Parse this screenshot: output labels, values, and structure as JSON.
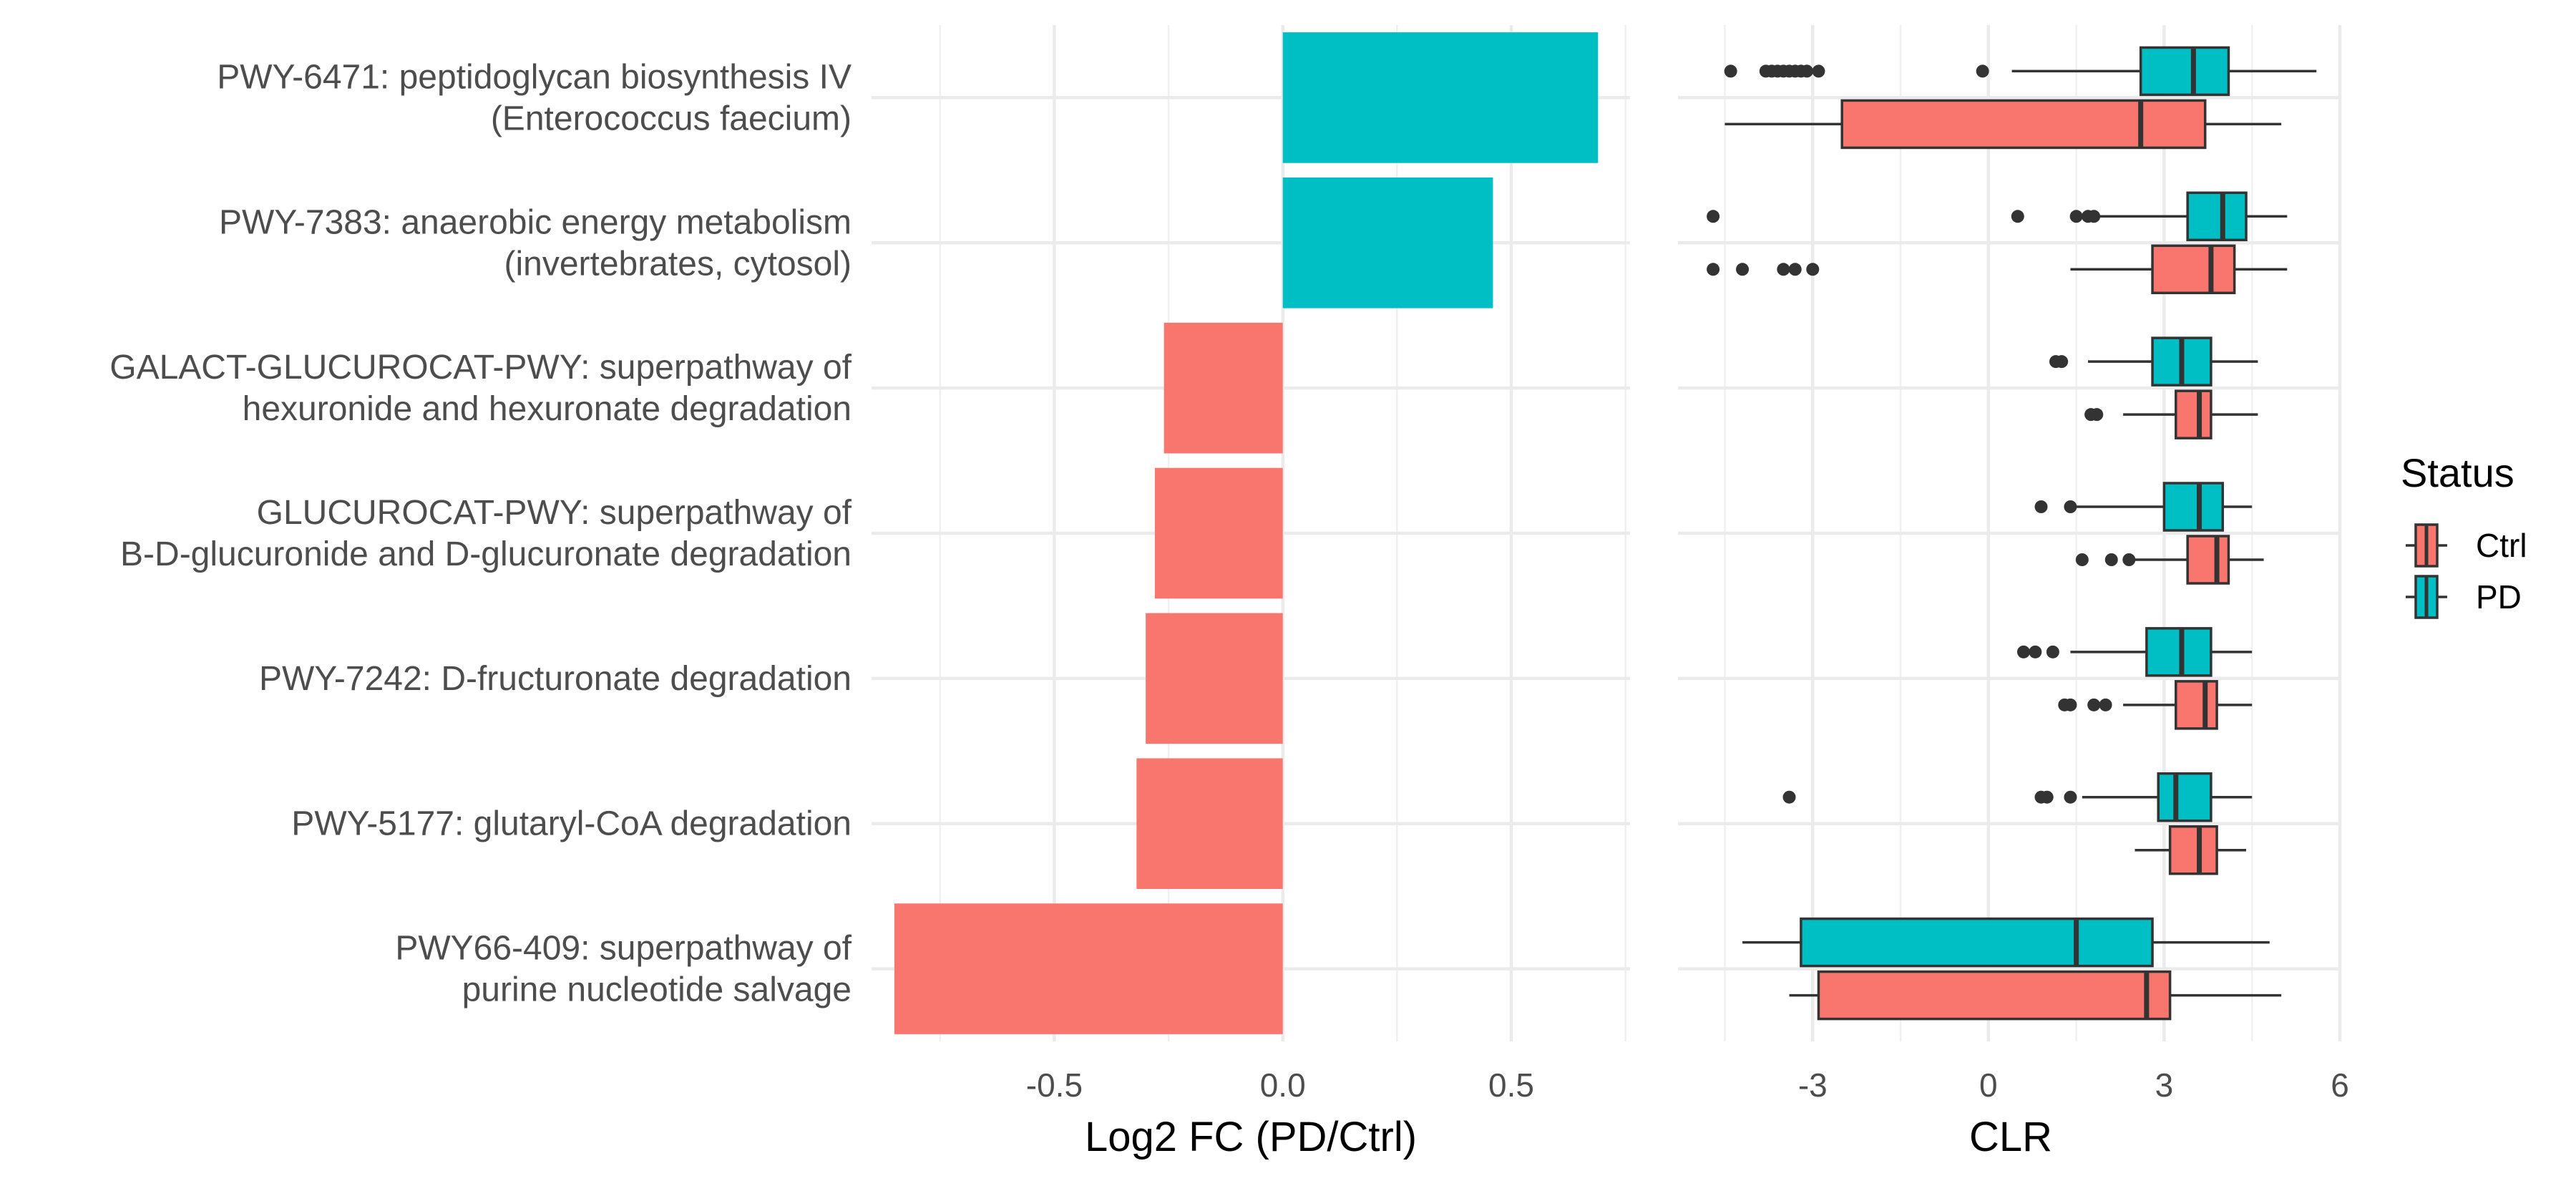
{
  "chart_data": [
    {
      "type": "bar",
      "orientation": "horizontal",
      "categories": [
        [
          "PWY-6471: peptidoglycan biosynthesis IV",
          "(Enterococcus faecium)"
        ],
        [
          "PWY-7383: anaerobic energy metabolism",
          "(invertebrates, cytosol)"
        ],
        [
          "GALACT-GLUCUROCAT-PWY: superpathway of",
          "hexuronide and hexuronate degradation"
        ],
        [
          "GLUCUROCAT-PWY: superpathway of",
          "B-D-glucuronide and D-glucuronate degradation"
        ],
        [
          "PWY-7242: D-fructuronate degradation"
        ],
        [
          "PWY-5177: glutaryl-CoA degradation"
        ],
        [
          "PWY66-409: superpathway of",
          "purine nucleotide salvage"
        ]
      ],
      "values": [
        0.69,
        0.46,
        -0.26,
        -0.28,
        -0.3,
        -0.32,
        -0.85
      ],
      "bar_colors": [
        "#00BFC4",
        "#00BFC4",
        "#F8766D",
        "#F8766D",
        "#F8766D",
        "#F8766D",
        "#F8766D"
      ],
      "xlabel": "Log2 FC (PD/Ctrl)",
      "xticks": [
        "-0.5",
        "0.0",
        "0.5"
      ],
      "xtick_values": [
        -0.5,
        0.0,
        0.5
      ],
      "xlim": [
        -0.9,
        0.76
      ],
      "grid": true
    },
    {
      "type": "boxplot",
      "orientation": "horizontal",
      "xlabel": "CLR",
      "xticks": [
        "-3",
        "0",
        "3",
        "6"
      ],
      "xtick_values": [
        -3,
        0,
        3,
        6
      ],
      "xlim": [
        -5.3,
        6.0
      ],
      "grid": true,
      "series": [
        {
          "name": "PD",
          "color": "#00BFC4",
          "boxes": [
            {
              "q1": 2.6,
              "median": 3.5,
              "q3": 4.1,
              "wlow": 0.4,
              "whigh": 5.6,
              "outliers": [
                -4.4,
                -3.8,
                -3.7,
                -3.6,
                -3.5,
                -3.4,
                -3.3,
                -3.2,
                -3.1,
                -2.9,
                -0.1
              ]
            },
            {
              "q1": 3.4,
              "median": 4.0,
              "q3": 4.4,
              "wlow": 1.9,
              "whigh": 5.1,
              "outliers": [
                -4.7,
                0.5,
                1.5,
                1.7,
                1.8
              ]
            },
            {
              "q1": 2.8,
              "median": 3.3,
              "q3": 3.8,
              "wlow": 1.7,
              "whigh": 4.6,
              "outliers": [
                1.15,
                1.25
              ]
            },
            {
              "q1": 3.0,
              "median": 3.6,
              "q3": 4.0,
              "wlow": 1.5,
              "whigh": 4.5,
              "outliers": [
                0.9,
                1.4
              ]
            },
            {
              "q1": 2.7,
              "median": 3.3,
              "q3": 3.8,
              "wlow": 1.4,
              "whigh": 4.5,
              "outliers": [
                0.6,
                0.8,
                1.1
              ]
            },
            {
              "q1": 2.9,
              "median": 3.2,
              "q3": 3.8,
              "wlow": 1.6,
              "whigh": 4.5,
              "outliers": [
                -3.4,
                0.9,
                1.0,
                1.4
              ]
            },
            {
              "q1": -3.2,
              "median": 1.5,
              "q3": 2.8,
              "wlow": -4.2,
              "whigh": 4.8,
              "outliers": []
            }
          ]
        },
        {
          "name": "Ctrl",
          "color": "#F8766D",
          "boxes": [
            {
              "q1": -2.5,
              "median": 2.6,
              "q3": 3.7,
              "wlow": -4.5,
              "whigh": 5.0,
              "outliers": []
            },
            {
              "q1": 2.8,
              "median": 3.8,
              "q3": 4.2,
              "wlow": 1.4,
              "whigh": 5.1,
              "outliers": [
                -4.7,
                -4.2,
                -3.5,
                -3.3,
                -3.0
              ]
            },
            {
              "q1": 3.2,
              "median": 3.6,
              "q3": 3.8,
              "wlow": 2.3,
              "whigh": 4.6,
              "outliers": [
                1.75,
                1.85
              ]
            },
            {
              "q1": 3.4,
              "median": 3.9,
              "q3": 4.1,
              "wlow": 2.5,
              "whigh": 4.7,
              "outliers": [
                1.6,
                2.1,
                2.4
              ]
            },
            {
              "q1": 3.2,
              "median": 3.7,
              "q3": 3.9,
              "wlow": 2.3,
              "whigh": 4.5,
              "outliers": [
                1.3,
                1.4,
                1.8,
                2.0
              ]
            },
            {
              "q1": 3.1,
              "median": 3.6,
              "q3": 3.9,
              "wlow": 2.5,
              "whigh": 4.4,
              "outliers": []
            },
            {
              "q1": -2.9,
              "median": 2.7,
              "q3": 3.1,
              "wlow": -3.4,
              "whigh": 5.0,
              "outliers": []
            }
          ]
        }
      ]
    }
  ],
  "legend": {
    "title": "Status",
    "items": [
      {
        "label": "Ctrl",
        "color": "#F8766D"
      },
      {
        "label": "PD",
        "color": "#00BFC4"
      }
    ]
  }
}
